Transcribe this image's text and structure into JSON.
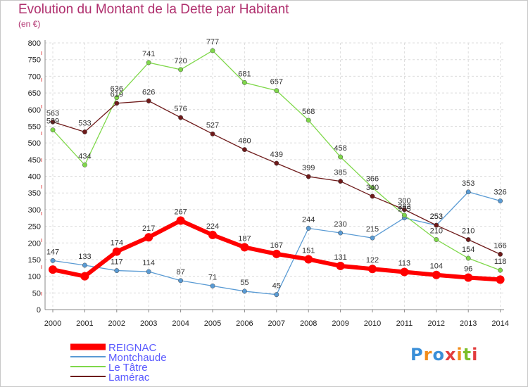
{
  "title": "Evolution du Montant de la Dette par Habitant",
  "unit": "(en €)",
  "logo": {
    "text": "Proxiti",
    "colors": [
      "#3a8fd8",
      "#f28c1a",
      "#3a8fd8",
      "#e23d3d",
      "#f28c1a",
      "#7bbf2a",
      "#e23d3d"
    ]
  },
  "chart_data": {
    "type": "line",
    "x": [
      "2000",
      "2001",
      "2002",
      "2003",
      "2004",
      "2005",
      "2006",
      "2007",
      "2008",
      "2009",
      "2010",
      "2011",
      "2012",
      "2013",
      "2014"
    ],
    "ylim": [
      0,
      800
    ],
    "yticks": [
      0,
      50,
      100,
      150,
      200,
      250,
      300,
      350,
      400,
      450,
      500,
      550,
      600,
      650,
      700,
      750,
      800
    ],
    "grid": true,
    "legend_position": "bottom-left",
    "series": [
      {
        "name": "REIGNAC",
        "color": "#ff0000",
        "legend_color": "#5a5aff",
        "values": [
          120,
          100,
          174,
          217,
          267,
          224,
          187,
          167,
          151,
          131,
          122,
          113,
          104,
          96,
          90
        ],
        "labels": [
          "",
          "",
          "174",
          "217",
          "267",
          "224",
          "187",
          "167",
          "151",
          "131",
          "122",
          "113",
          "104",
          "96",
          ""
        ]
      },
      {
        "name": "Montchaude",
        "color": "#5a9bd4",
        "legend_color": "#5a5aff",
        "values": [
          147,
          133,
          117,
          114,
          87,
          71,
          55,
          45,
          244,
          230,
          215,
          275,
          253,
          353,
          326
        ],
        "labels": [
          "147",
          "133",
          "117",
          "114",
          "87",
          "71",
          "55",
          "45",
          "244",
          "230",
          "215",
          "275",
          "253",
          "353",
          "326"
        ]
      },
      {
        "name": "Le Tâtre",
        "color": "#7fd84a",
        "legend_color": "#5a5aff",
        "values": [
          539,
          434,
          636,
          741,
          720,
          777,
          681,
          657,
          568,
          458,
          366,
          283,
          210,
          154,
          118
        ],
        "labels": [
          "539",
          "434",
          "636",
          "741",
          "720",
          "777",
          "681",
          "657",
          "568",
          "458",
          "366",
          "283",
          "210",
          "154",
          "118"
        ]
      },
      {
        "name": "Lamérac",
        "color": "#6e1a1a",
        "legend_color": "#5a5aff",
        "values": [
          563,
          533,
          619,
          626,
          576,
          527,
          480,
          439,
          399,
          385,
          340,
          300,
          253,
          210,
          166
        ],
        "labels": [
          "563",
          "533",
          "619",
          "626",
          "576",
          "527",
          "480",
          "439",
          "399",
          "385",
          "340",
          "300",
          "253",
          "210",
          "166"
        ]
      }
    ]
  }
}
